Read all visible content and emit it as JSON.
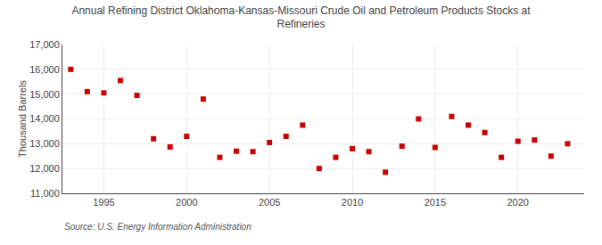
{
  "chart_data": {
    "type": "scatter",
    "title": "Annual Refining District Oklahoma-Kansas-Missouri Crude Oil and Petroleum Products Stocks at\nRefineries",
    "ylabel": "Thousand Barrels",
    "annotations": [
      "Source: U.S. Energy Information Administration"
    ],
    "x": [
      1993,
      1994,
      1995,
      1996,
      1997,
      1998,
      1999,
      2000,
      2001,
      2002,
      2003,
      2004,
      2005,
      2006,
      2007,
      2008,
      2009,
      2010,
      2011,
      2012,
      2013,
      2014,
      2015,
      2016,
      2017,
      2018,
      2019,
      2020,
      2021,
      2022,
      2023
    ],
    "values": [
      16000,
      15100,
      15050,
      15550,
      14950,
      13200,
      12870,
      13300,
      14800,
      12450,
      12700,
      12680,
      13050,
      13300,
      13750,
      12000,
      12450,
      12800,
      12680,
      11850,
      12900,
      14000,
      12850,
      14100,
      13750,
      13450,
      12450,
      13100,
      13150,
      12500,
      13000
    ],
    "color": "#cc0000",
    "marker": "square",
    "xlim": [
      1992.5,
      2024
    ],
    "xticks": [
      1995,
      2000,
      2005,
      2010,
      2015,
      2020
    ],
    "ylim": [
      11000,
      17000
    ],
    "yticks": [
      {
        "value": 11000,
        "label": "11,000"
      },
      {
        "value": 12000,
        "label": "12,000"
      },
      {
        "value": 13000,
        "label": "13,000"
      },
      {
        "value": 14000,
        "label": "14,000"
      },
      {
        "value": 15000,
        "label": "15,000"
      },
      {
        "value": 16000,
        "label": "16,000"
      },
      {
        "value": 17000,
        "label": "17,000"
      }
    ],
    "grid": true
  }
}
